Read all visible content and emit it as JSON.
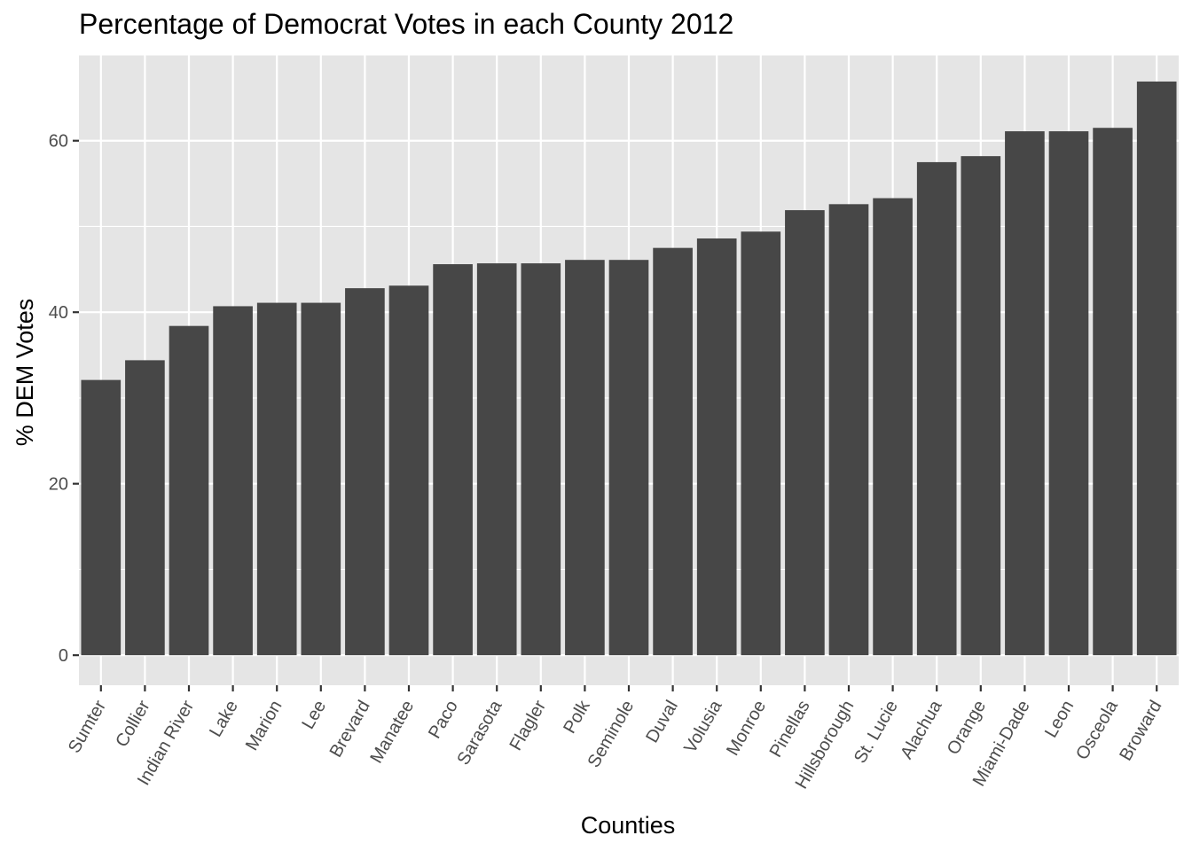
{
  "chart_data": {
    "type": "bar",
    "title": "Percentage of Democrat Votes in each County 2012",
    "xlabel": "Counties",
    "ylabel": "% DEM Votes",
    "ylim": [
      -3.5,
      70
    ],
    "yticks": [
      0,
      20,
      40,
      60
    ],
    "grid": true,
    "categories": [
      "Sumter",
      "Collier",
      "Indian River",
      "Lake",
      "Marion",
      "Lee",
      "Brevard",
      "Manatee",
      "Paco",
      "Sarasota",
      "Flagler",
      "Polk",
      "Seminole",
      "Duval",
      "Volusia",
      "Monroe",
      "Pinellas",
      "Hillsborough",
      "St. Lucie",
      "Alachua",
      "Orange",
      "Miami-Dade",
      "Leon",
      "Osceola",
      "Broward"
    ],
    "values": [
      32.1,
      34.4,
      38.4,
      40.7,
      41.1,
      41.1,
      42.8,
      43.1,
      45.6,
      45.7,
      45.7,
      46.1,
      46.1,
      47.5,
      48.6,
      49.4,
      51.9,
      52.6,
      53.3,
      57.5,
      58.2,
      61.1,
      61.1,
      61.5,
      66.9
    ],
    "colors": {
      "bar": "#474747",
      "panel": "#e5e5e5",
      "grid": "#ffffff",
      "tick": "#4d4d4d"
    }
  }
}
